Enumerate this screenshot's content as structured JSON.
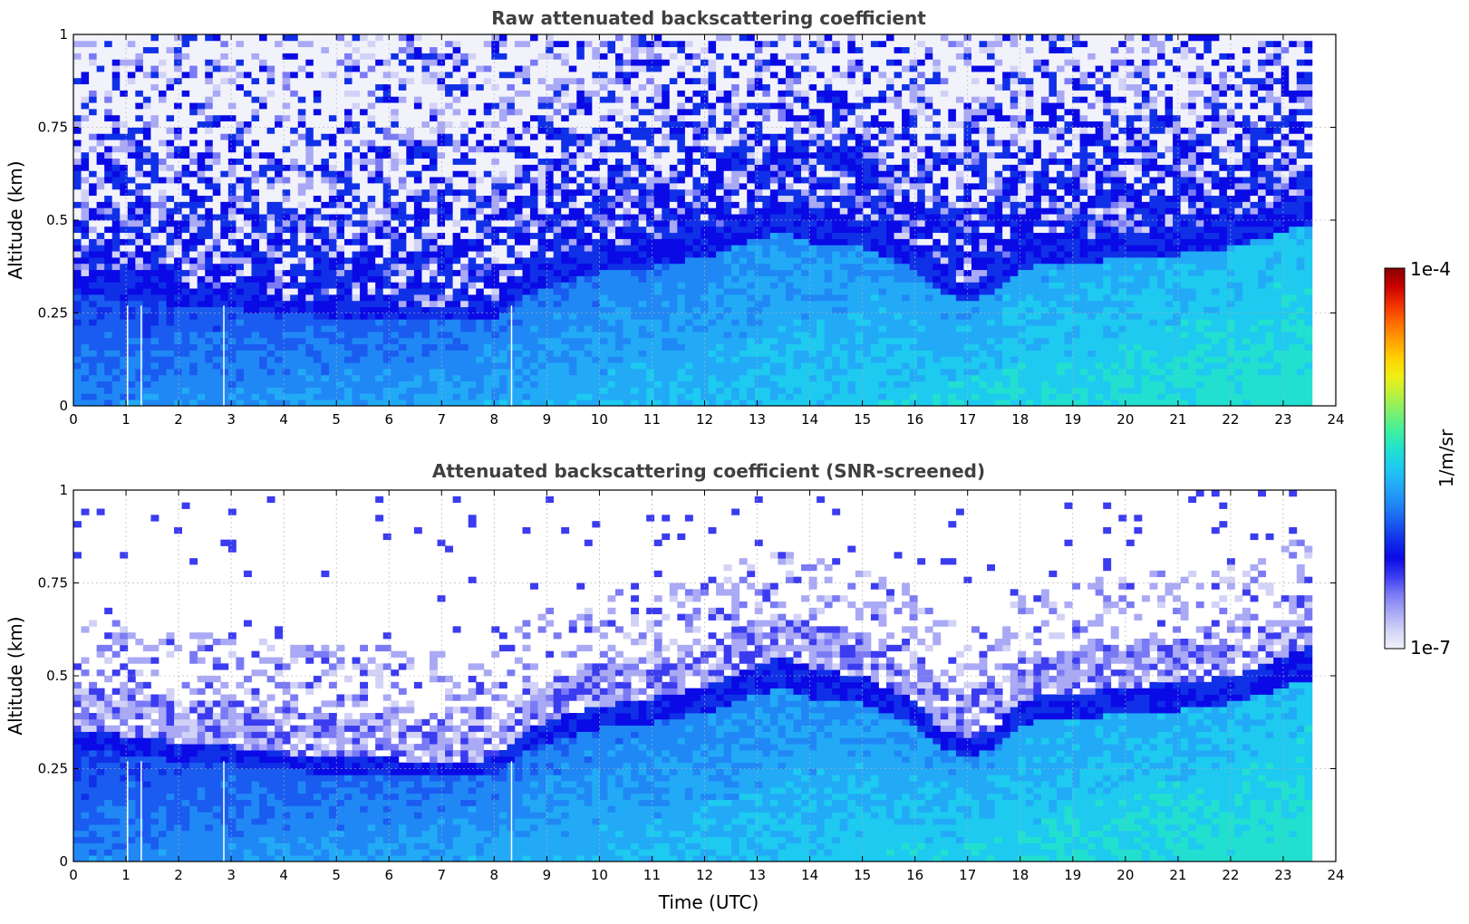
{
  "chart_data": [
    {
      "type": "heatmap",
      "title": "Raw attenuated backscattering coefficient",
      "xlabel": "",
      "ylabel": "Altitude (km)",
      "xlim": [
        0,
        24
      ],
      "ylim": [
        0,
        1
      ],
      "xticks": [
        "0",
        "1",
        "2",
        "3",
        "4",
        "5",
        "6",
        "7",
        "8",
        "9",
        "10",
        "11",
        "12",
        "13",
        "14",
        "15",
        "16",
        "17",
        "18",
        "19",
        "20",
        "21",
        "22",
        "23",
        "24"
      ],
      "yticks": [
        "0",
        "0.25",
        "0.5",
        "0.75",
        "1"
      ],
      "grid": true,
      "data_end_time": 23.55,
      "layer_top_km": {
        "x": [
          0,
          1,
          2,
          3,
          4,
          5,
          6,
          6.5,
          7,
          7.5,
          8,
          8.3,
          9,
          10,
          11,
          12,
          13,
          13.5,
          14,
          15,
          16,
          16.5,
          17,
          17.5,
          18,
          18.5,
          19,
          20,
          21,
          22,
          23,
          23.55
        ],
        "y": [
          0.35,
          0.34,
          0.32,
          0.31,
          0.29,
          0.28,
          0.28,
          0.27,
          0.27,
          0.27,
          0.28,
          0.32,
          0.38,
          0.42,
          0.44,
          0.47,
          0.53,
          0.55,
          0.52,
          0.5,
          0.43,
          0.36,
          0.33,
          0.36,
          0.43,
          0.45,
          0.45,
          0.47,
          0.48,
          0.5,
          0.55,
          0.58
        ]
      },
      "gaps_time": [
        1.03,
        1.29,
        2.86,
        8.33
      ]
    },
    {
      "type": "heatmap",
      "title": "Attenuated backscattering coefficient (SNR-screened)",
      "xlabel": "Time (UTC)",
      "ylabel": "Altitude (km)",
      "xlim": [
        0,
        24
      ],
      "ylim": [
        0,
        1
      ],
      "xticks": [
        "0",
        "1",
        "2",
        "3",
        "4",
        "5",
        "6",
        "7",
        "8",
        "9",
        "10",
        "11",
        "12",
        "13",
        "14",
        "15",
        "16",
        "17",
        "18",
        "19",
        "20",
        "21",
        "22",
        "23",
        "24"
      ],
      "yticks": [
        "0",
        "0.25",
        "0.5",
        "0.75",
        "1"
      ],
      "grid": true,
      "data_end_time": 23.55,
      "layer_top_km": {
        "x": [
          0,
          1,
          2,
          3,
          4,
          5,
          6,
          6.5,
          7,
          7.5,
          8,
          8.3,
          9,
          10,
          11,
          12,
          13,
          13.5,
          14,
          15,
          16,
          16.5,
          17,
          17.5,
          18,
          18.5,
          19,
          20,
          21,
          22,
          23,
          23.55
        ],
        "y": [
          0.35,
          0.34,
          0.32,
          0.31,
          0.29,
          0.28,
          0.28,
          0.27,
          0.27,
          0.27,
          0.28,
          0.32,
          0.38,
          0.42,
          0.44,
          0.47,
          0.53,
          0.55,
          0.52,
          0.5,
          0.43,
          0.36,
          0.33,
          0.36,
          0.43,
          0.45,
          0.45,
          0.47,
          0.48,
          0.5,
          0.55,
          0.58
        ]
      },
      "gaps_time": [
        1.03,
        1.29,
        2.86,
        8.33
      ]
    }
  ],
  "colorbar": {
    "label": "1/m/sr",
    "max_label": "1e-4",
    "min_label": "1e-7",
    "scale": "log",
    "range": [
      1e-07,
      0.0001
    ],
    "colors": [
      "#f2f2fb",
      "#d2d2f7",
      "#a9a9f5",
      "#7a7af5",
      "#3b3bf0",
      "#0a0ae6",
      "#1030e8",
      "#1a5cf0",
      "#2088f5",
      "#22aaf7",
      "#1ecaf0",
      "#22e0d0",
      "#3ef0a0",
      "#7af070",
      "#b8f040",
      "#eef018",
      "#ffd200",
      "#ffa000",
      "#ff6a00",
      "#f03000",
      "#c80000",
      "#8a0000"
    ]
  }
}
